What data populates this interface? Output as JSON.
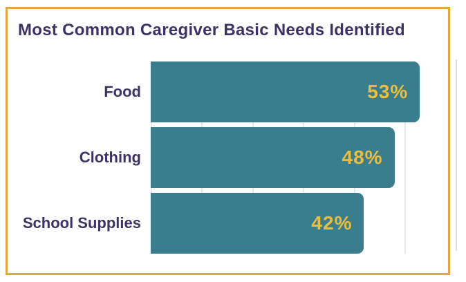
{
  "chart_data": {
    "type": "bar",
    "orientation": "horizontal",
    "title": "Most Common Caregiver Basic Needs Identified",
    "categories": [
      "Food",
      "Clothing",
      "School Supplies"
    ],
    "values": [
      53,
      48,
      42
    ],
    "value_labels": [
      "53%",
      "48%",
      "42%"
    ],
    "xlabel": "",
    "ylabel": "",
    "xlim": [
      0,
      58
    ],
    "gridline_step": 10,
    "grid": "vertical-faint",
    "legend": "none",
    "value_label_position": "inside-end"
  },
  "colors": {
    "bar": "#3A7D8C",
    "value_label": "#EDBE3B",
    "title": "#3E3264",
    "category_label": "#3E3264",
    "border": "#E2A83D",
    "gridline": "#E7E7EA",
    "side_line": "#DCDCDE",
    "background": "#FFFFFF"
  }
}
